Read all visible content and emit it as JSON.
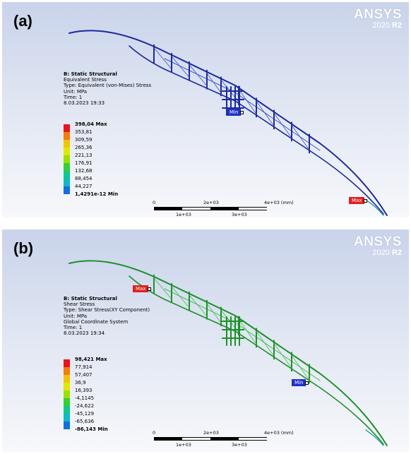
{
  "panels": [
    {
      "label": "(a)",
      "brand": {
        "name": "ANSYS",
        "version": "2020",
        "release": "R2"
      },
      "info": [
        "B: Static Structural",
        "Equivalent Stress",
        "Type: Equivalent (von-Mises) Stress",
        "Unit: MPa",
        "Time: 1",
        "8.03.2023 19:33"
      ],
      "legend": {
        "labels": [
          "398,04 Max",
          "353,81",
          "309,59",
          "265,36",
          "221,13",
          "176,91",
          "132,68",
          "88,454",
          "44,227",
          "1,4291e-12 Min"
        ]
      },
      "scale": {
        "ticks_top": [
          "0",
          "2e+03",
          "4e+03 (mm)"
        ],
        "ticks_bottom": [
          "1e+03",
          "3e+03"
        ]
      },
      "probes": {
        "max": "Max",
        "min": "Min"
      },
      "colors": {
        "structure": "#1c2a9c",
        "structure_light": "#3a4fd0",
        "tip": "#2aa0b0"
      }
    },
    {
      "label": "(b)",
      "brand": {
        "name": "ANSYS",
        "version": "2020",
        "release": "R2"
      },
      "info": [
        "B: Static Structural",
        "Shear Stress",
        "Type: Shear Stress(XY Component)",
        "Unit: MPa",
        "Global Coordinate System",
        "Time: 1",
        "8.03.2023 19:34"
      ],
      "legend": {
        "labels": [
          "98,421 Max",
          "77,914",
          "57,407",
          "36,9",
          "16,393",
          "-4,1145",
          "-24,622",
          "-45,129",
          "-65,636",
          "-86,143 Min"
        ]
      },
      "scale": {
        "ticks_top": [
          "0",
          "2e+03",
          "4e+03 (mm)"
        ],
        "ticks_bottom": [
          "1e+03",
          "3e+03"
        ]
      },
      "probes": {
        "max": "Max",
        "min": "Min"
      },
      "colors": {
        "structure": "#1f8f2a",
        "structure_light": "#3fc04a",
        "tip": "#2aa0b0"
      }
    }
  ],
  "legend_colors": [
    "#e8141a",
    "#f27c10",
    "#f0c400",
    "#dfe800",
    "#9ce000",
    "#36d036",
    "#10c88a",
    "#10b8c8",
    "#1070e0",
    "#1018c8"
  ]
}
